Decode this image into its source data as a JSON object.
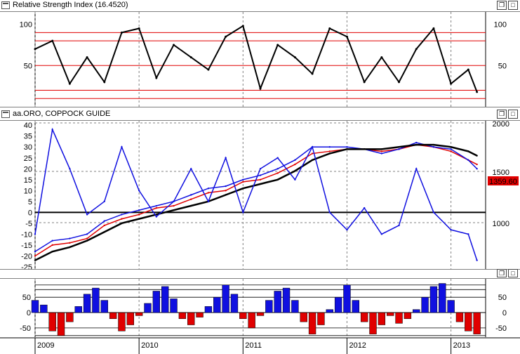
{
  "panels": {
    "rsi": {
      "title": "Relative Strength Index (16.4520)"
    },
    "price": {
      "title": "aa.ORO, COPPOCK GUIDE",
      "last_price": "1359.60"
    },
    "hist": {
      "title": ""
    }
  },
  "window_controls": {
    "restore_icon": "restore-icon",
    "maximize_icon": "maximize-icon"
  },
  "colors": {
    "red_line": "#e00000",
    "blue_line": "#1010e0",
    "black_line": "#000000",
    "grid": "#808080",
    "up_bar": "#1010e0",
    "down_bar": "#e00000",
    "price_badge": "#e00000"
  },
  "chart_data": [
    {
      "type": "line",
      "title": "Relative Strength Index (16.4520)",
      "ylim": [
        0,
        115
      ],
      "y_ticks": [
        100,
        50
      ],
      "reference_levels": [
        90,
        80,
        50,
        20,
        10
      ],
      "grid": true,
      "x": [
        "2009-01",
        "2009-03",
        "2009-05",
        "2009-07",
        "2009-09",
        "2009-11",
        "2010-01",
        "2010-03",
        "2010-05",
        "2010-07",
        "2010-09",
        "2010-11",
        "2011-01",
        "2011-03",
        "2011-05",
        "2011-07",
        "2011-09",
        "2011-11",
        "2012-01",
        "2012-03",
        "2012-05",
        "2012-07",
        "2012-09",
        "2012-11",
        "2013-01",
        "2013-03",
        "2013-04"
      ],
      "series": [
        {
          "values": [
            70,
            80,
            28,
            60,
            30,
            90,
            95,
            35,
            75,
            60,
            45,
            85,
            98,
            22,
            75,
            60,
            40,
            95,
            85,
            30,
            60,
            30,
            70,
            95,
            28,
            45,
            18
          ]
        }
      ]
    },
    {
      "type": "line",
      "title": "aa.ORO, COPPOCK GUIDE",
      "ylim": [
        -26,
        42
      ],
      "y_ticks_left": [
        40,
        35,
        30,
        25,
        20,
        15,
        10,
        5,
        0,
        -5,
        -10,
        -15,
        -20,
        -25
      ],
      "y_ticks_right": [
        2000,
        1500,
        1000
      ],
      "last_price": "1359.60",
      "grid": true,
      "x_ticks": [
        "2009",
        "2010",
        "2011",
        "2012",
        "2013"
      ],
      "x": [
        "2009-01",
        "2009-03",
        "2009-05",
        "2009-07",
        "2009-09",
        "2009-11",
        "2010-01",
        "2010-03",
        "2010-05",
        "2010-07",
        "2010-09",
        "2010-11",
        "2011-01",
        "2011-03",
        "2011-05",
        "2011-07",
        "2011-09",
        "2011-11",
        "2012-01",
        "2012-03",
        "2012-05",
        "2012-07",
        "2012-09",
        "2012-11",
        "2013-01",
        "2013-03",
        "2013-04"
      ],
      "series": [
        {
          "values": [
            -20,
            -15,
            -14,
            -12,
            -6,
            -3,
            -1,
            2,
            3,
            6,
            9,
            10,
            14,
            15,
            18,
            22,
            27,
            28,
            29,
            29,
            28,
            29,
            31,
            30,
            28,
            24,
            22
          ]
        },
        {
          "values": [
            -18,
            -13,
            -12,
            -10,
            -4,
            -1,
            1,
            3,
            5,
            8,
            11,
            12,
            15,
            17,
            20,
            24,
            30,
            30,
            30,
            29,
            27,
            29,
            32,
            30,
            29,
            24,
            20
          ]
        },
        {
          "values": [
            -22,
            -18,
            -16,
            -13,
            -9,
            -5,
            -3,
            -1,
            1,
            3,
            5,
            8,
            11,
            13,
            15,
            19,
            24,
            27,
            29,
            29,
            29,
            30,
            31,
            31,
            30,
            28,
            26
          ]
        },
        {
          "values": [
            -10,
            38,
            20,
            -1,
            5,
            30,
            10,
            -2,
            5,
            20,
            5,
            25,
            0,
            20,
            25,
            15,
            30,
            0,
            -8,
            2,
            -10,
            -6,
            20,
            0,
            -8,
            -10,
            -22
          ]
        }
      ]
    },
    {
      "type": "bar",
      "title": "",
      "ylim": [
        -80,
        110
      ],
      "y_ticks": [
        50,
        0,
        -50
      ],
      "reference_levels": [
        90,
        75,
        50,
        -50,
        -75
      ],
      "grid": true,
      "x": [
        "2009-01",
        "2009-02",
        "2009-03",
        "2009-04",
        "2009-05",
        "2009-06",
        "2009-07",
        "2009-08",
        "2009-09",
        "2009-10",
        "2009-11",
        "2009-12",
        "2010-01",
        "2010-02",
        "2010-03",
        "2010-04",
        "2010-05",
        "2010-06",
        "2010-07",
        "2010-08",
        "2010-09",
        "2010-10",
        "2010-11",
        "2010-12",
        "2011-01",
        "2011-02",
        "2011-03",
        "2011-04",
        "2011-05",
        "2011-06",
        "2011-07",
        "2011-08",
        "2011-09",
        "2011-10",
        "2011-11",
        "2011-12",
        "2012-01",
        "2012-02",
        "2012-03",
        "2012-04",
        "2012-05",
        "2012-06",
        "2012-07",
        "2012-08",
        "2012-09",
        "2012-10",
        "2012-11",
        "2012-12",
        "2013-01",
        "2013-02",
        "2013-03",
        "2013-04"
      ],
      "values": [
        40,
        25,
        -60,
        -75,
        -30,
        20,
        60,
        80,
        40,
        -20,
        -60,
        -40,
        -10,
        30,
        70,
        85,
        45,
        -20,
        -40,
        -15,
        20,
        50,
        90,
        60,
        -20,
        -50,
        -10,
        40,
        70,
        80,
        40,
        -30,
        -70,
        -40,
        10,
        50,
        90,
        40,
        -30,
        -70,
        -40,
        -10,
        -35,
        -20,
        10,
        50,
        85,
        95,
        40,
        -30,
        -60,
        -70
      ]
    }
  ],
  "x_axis": {
    "labels": [
      "2009",
      "2010",
      "2011",
      "2012",
      "2013"
    ]
  }
}
